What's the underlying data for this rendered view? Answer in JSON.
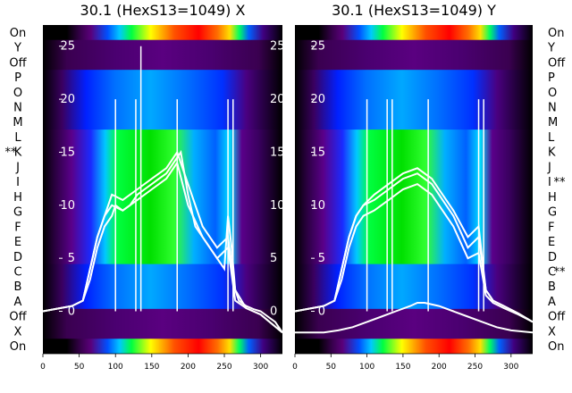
{
  "chart_data": [
    {
      "type": "heatmap",
      "title": "30.1 (HexS13=1049) X",
      "row_labels": [
        "On",
        "Y",
        "Off",
        "P",
        "O",
        "N",
        "M",
        "L",
        "K",
        "J",
        "I",
        "H",
        "G",
        "F",
        "E",
        "D",
        "C",
        "B",
        "A",
        "Off",
        "X",
        "On"
      ],
      "row_marks": [
        {
          "row": "K",
          "text": "**",
          "side": "left"
        }
      ],
      "x_ticks": [
        0,
        50,
        100,
        150,
        200,
        250,
        300
      ],
      "xlim": [
        0,
        330
      ],
      "y_overlay_ticks": [
        0,
        5,
        10,
        15,
        20,
        25
      ],
      "y_overlay_tick_labels": [
        "0",
        "5",
        "10",
        "15",
        "20",
        "25"
      ],
      "ylim": [
        -4,
        27
      ],
      "profile_curves": [
        {
          "name": "",
          "x": [
            0,
            40,
            55,
            65,
            75,
            85,
            95,
            100,
            110,
            120,
            130,
            140,
            150,
            160,
            170,
            180,
            190,
            200,
            210,
            220,
            230,
            240,
            250,
            255,
            260,
            265,
            270,
            280,
            290,
            300,
            310,
            320,
            330
          ],
          "y": [
            0,
            0.5,
            1,
            3,
            6,
            8,
            9,
            10,
            9.5,
            10,
            11,
            11.5,
            12,
            12.5,
            13,
            14,
            15,
            11,
            8,
            7,
            6,
            5,
            4,
            9,
            6,
            2,
            1,
            0.5,
            0.2,
            0,
            -0.5,
            -1,
            -2
          ]
        },
        {
          "name": "",
          "x": [
            0,
            40,
            55,
            65,
            75,
            85,
            95,
            110,
            130,
            150,
            170,
            185,
            200,
            220,
            240,
            255,
            265,
            280,
            300,
            330
          ],
          "y": [
            0,
            0.5,
            1,
            4,
            7,
            9,
            10,
            9.5,
            10.5,
            11.5,
            12.5,
            14,
            10,
            7,
            5,
            6,
            1,
            0.3,
            -0.3,
            -2
          ]
        },
        {
          "name": "",
          "x": [
            0,
            40,
            55,
            65,
            75,
            85,
            95,
            110,
            130,
            150,
            170,
            185,
            200,
            220,
            240,
            255,
            265,
            280,
            300,
            330
          ],
          "y": [
            0,
            0.5,
            1,
            4,
            7,
            9,
            11,
            10.5,
            11.5,
            12.5,
            13.5,
            15,
            12,
            8,
            6,
            7,
            2,
            0.3,
            -0.3,
            -2
          ]
        }
      ]
    },
    {
      "type": "heatmap",
      "title": "30.1 (HexS13=1049) Y",
      "row_labels": [
        "On",
        "Y",
        "Off",
        "P",
        "O",
        "N",
        "M",
        "L",
        "K",
        "J",
        "I",
        "H",
        "G",
        "F",
        "E",
        "D",
        "C",
        "B",
        "A",
        "Off",
        "X",
        "On"
      ],
      "row_marks": [
        {
          "row": "I",
          "text": "**",
          "side": "right"
        },
        {
          "row": "C",
          "text": "**",
          "side": "right"
        }
      ],
      "x_ticks": [
        0,
        50,
        100,
        150,
        200,
        250,
        300
      ],
      "xlim": [
        0,
        330
      ],
      "y_overlay_ticks": [
        0,
        5,
        10,
        15,
        20,
        25
      ],
      "y_overlay_tick_labels": [
        "0",
        "5",
        "10",
        "15",
        "20",
        "25"
      ],
      "ylim": [
        -4,
        27
      ],
      "profile_curves": [
        {
          "name": "",
          "x": [
            0,
            40,
            55,
            65,
            75,
            85,
            95,
            110,
            130,
            150,
            170,
            190,
            200,
            220,
            240,
            255,
            265,
            275,
            290,
            310,
            330
          ],
          "y": [
            0,
            0.5,
            1,
            4,
            7,
            9,
            10,
            10.5,
            11.5,
            12.5,
            13,
            12,
            11,
            9,
            6,
            7,
            2,
            1,
            0.5,
            -0.2,
            -1
          ]
        },
        {
          "name": "",
          "x": [
            0,
            40,
            55,
            65,
            75,
            85,
            95,
            110,
            130,
            150,
            170,
            190,
            200,
            220,
            240,
            255,
            265,
            275,
            290,
            310,
            330
          ],
          "y": [
            0,
            0.5,
            1,
            4,
            7,
            9,
            10,
            11,
            12,
            13,
            13.5,
            12.5,
            11.5,
            9.5,
            7,
            8,
            2,
            1,
            0.5,
            -0.2,
            -1
          ]
        },
        {
          "name": "",
          "x": [
            0,
            40,
            55,
            65,
            75,
            85,
            95,
            110,
            130,
            150,
            170,
            190,
            200,
            220,
            240,
            255,
            265,
            275,
            290,
            310,
            330
          ],
          "y": [
            0,
            0.5,
            1,
            3,
            6,
            8,
            9,
            9.5,
            10.5,
            11.5,
            12,
            11,
            10,
            8,
            5,
            5.5,
            1.5,
            0.8,
            0.3,
            -0.3,
            -1
          ]
        },
        {
          "name": "",
          "x": [
            0,
            40,
            60,
            80,
            100,
            120,
            140,
            160,
            170,
            180,
            200,
            220,
            240,
            260,
            280,
            300,
            330
          ],
          "y": [
            -2,
            -2,
            -1.8,
            -1.5,
            -1,
            -0.5,
            0,
            0.5,
            0.8,
            0.8,
            0.5,
            0,
            -0.5,
            -1,
            -1.5,
            -1.8,
            -2
          ]
        }
      ]
    }
  ]
}
